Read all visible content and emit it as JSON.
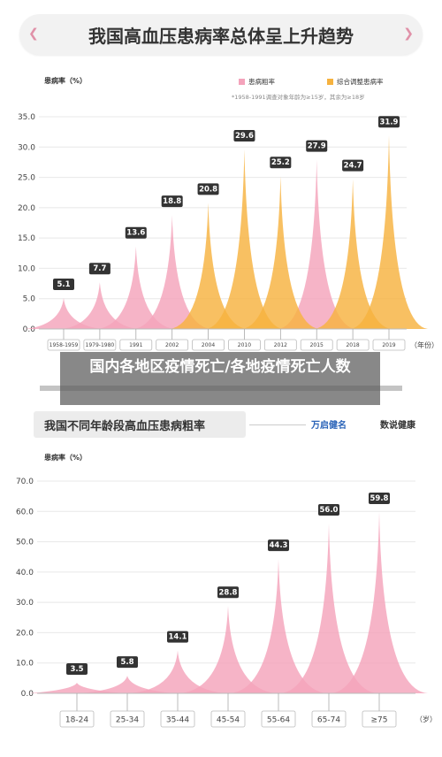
{
  "header": {
    "title": "我国高血压患病率总体呈上升趋势"
  },
  "overlay": {
    "text": "国内各地区疫情死亡/各地疫情死亡人数"
  },
  "subtitle": {
    "title": "我国不同年龄段高血压患病粗率"
  },
  "brands": {
    "left": "万启健名",
    "right": "数说健康"
  },
  "colors": {
    "pink": "#f4a3bb",
    "yellow": "#f6b23f",
    "label_bg": "#333333"
  },
  "chart_data": [
    {
      "type": "area",
      "ylabel": "患病率（%）",
      "xlabel": "（年份）",
      "ylim": [
        0,
        35
      ],
      "yticks": [
        "0.0",
        "5.0",
        "10.0",
        "15.0",
        "20.0",
        "25.0",
        "30.0",
        "35.0"
      ],
      "categories": [
        "1958-1959",
        "1979-1980",
        "1991",
        "2002",
        "2004",
        "2010",
        "2012",
        "2015",
        "2018",
        "2019"
      ],
      "legend": [
        "患病粗率",
        "综合调整患病率"
      ],
      "legend_position": "top-right",
      "note": "*1958-1991调查对象年龄为≥15岁，其余为≥18岁",
      "series": [
        {
          "name": "患病粗率",
          "color": "#f4a3bb",
          "points": [
            {
              "category": "1958-1959",
              "value": 5.1
            },
            {
              "category": "1979-1980",
              "value": 7.7
            },
            {
              "category": "1991",
              "value": 13.6
            },
            {
              "category": "2002",
              "value": 18.8
            },
            {
              "category": "2015",
              "value": 27.9
            }
          ]
        },
        {
          "name": "综合调整患病率",
          "color": "#f6b23f",
          "points": [
            {
              "category": "2004",
              "value": 20.8
            },
            {
              "category": "2010",
              "value": 29.6
            },
            {
              "category": "2012",
              "value": 25.2
            },
            {
              "category": "2018",
              "value": 24.7
            },
            {
              "category": "2019",
              "value": 31.9
            }
          ]
        }
      ]
    },
    {
      "type": "area",
      "ylabel": "患病率（%）",
      "xlabel": "（岁）",
      "ylim": [
        0,
        70
      ],
      "yticks": [
        "0.0",
        "10.0",
        "20.0",
        "30.0",
        "40.0",
        "50.0",
        "60.0",
        "70.0"
      ],
      "categories": [
        "18-24",
        "25-34",
        "35-44",
        "45-54",
        "55-64",
        "65-74",
        "≥75"
      ],
      "series": [
        {
          "color": "#f4a3bb",
          "points": [
            {
              "category": "18-24",
              "value": 3.5
            },
            {
              "category": "25-34",
              "value": 5.8
            },
            {
              "category": "35-44",
              "value": 14.1
            },
            {
              "category": "45-54",
              "value": 28.8
            },
            {
              "category": "55-64",
              "value": 44.3
            },
            {
              "category": "65-74",
              "value": 56.0
            },
            {
              "category": "≥75",
              "value": 59.8
            }
          ]
        }
      ]
    }
  ]
}
